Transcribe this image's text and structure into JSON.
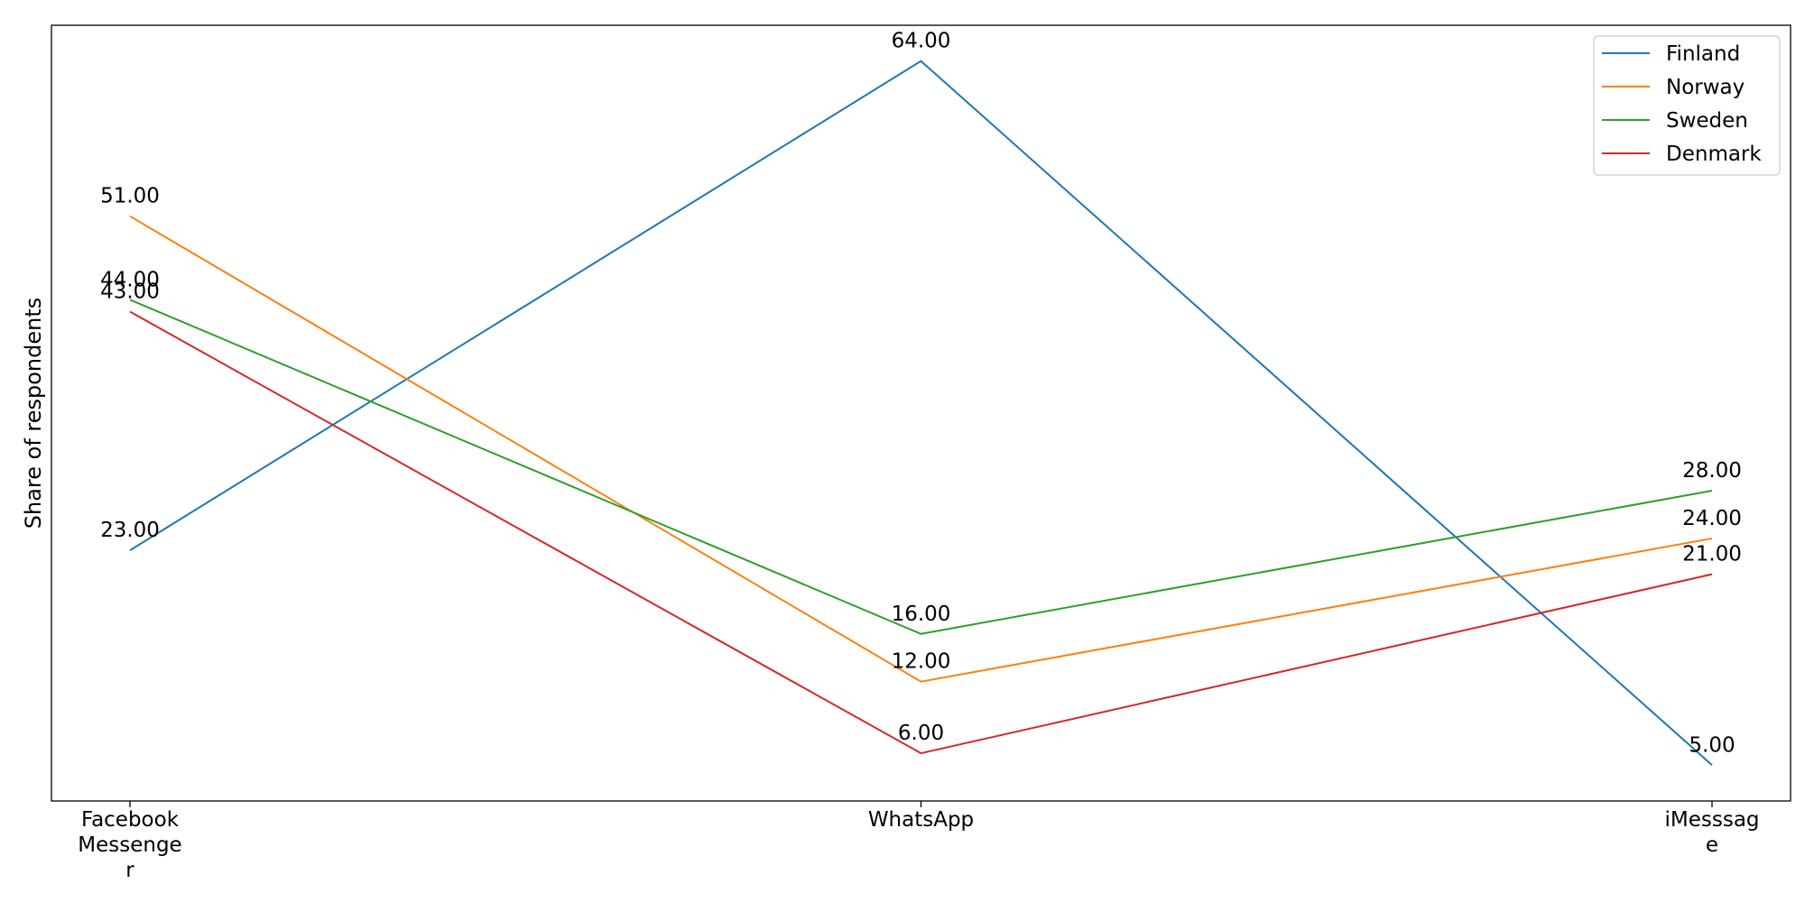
{
  "chart_data": {
    "type": "line",
    "categories": [
      "Facebook Messenger",
      "WhatsApp",
      "iMesssage"
    ],
    "category_tick_labels": [
      [
        "Facebook",
        "Messenge",
        "r"
      ],
      [
        "WhatsApp"
      ],
      [
        "iMesssag",
        "e"
      ]
    ],
    "series": [
      {
        "name": "Finland",
        "color": "#1f77b4",
        "values": [
          23,
          64,
          5
        ],
        "labels": [
          "23.00",
          "64.00",
          "5.00"
        ]
      },
      {
        "name": "Norway",
        "color": "#ff7f0e",
        "values": [
          51,
          12,
          24
        ],
        "labels": [
          "51.00",
          "12.00",
          "24.00"
        ]
      },
      {
        "name": "Sweden",
        "color": "#2ca02c",
        "values": [
          44,
          16,
          28
        ],
        "labels": [
          "44.00",
          "16.00",
          "28.00"
        ]
      },
      {
        "name": "Denmark",
        "color": "#d62728",
        "values": [
          43,
          6,
          21
        ],
        "labels": [
          "43.00",
          "6.00",
          "21.00"
        ]
      }
    ],
    "title": "",
    "xlabel": "",
    "ylabel": "Share of respondents",
    "ylim": [
      2,
      67
    ],
    "yticks_visible": false,
    "grid": false,
    "legend_position": "top-right"
  }
}
